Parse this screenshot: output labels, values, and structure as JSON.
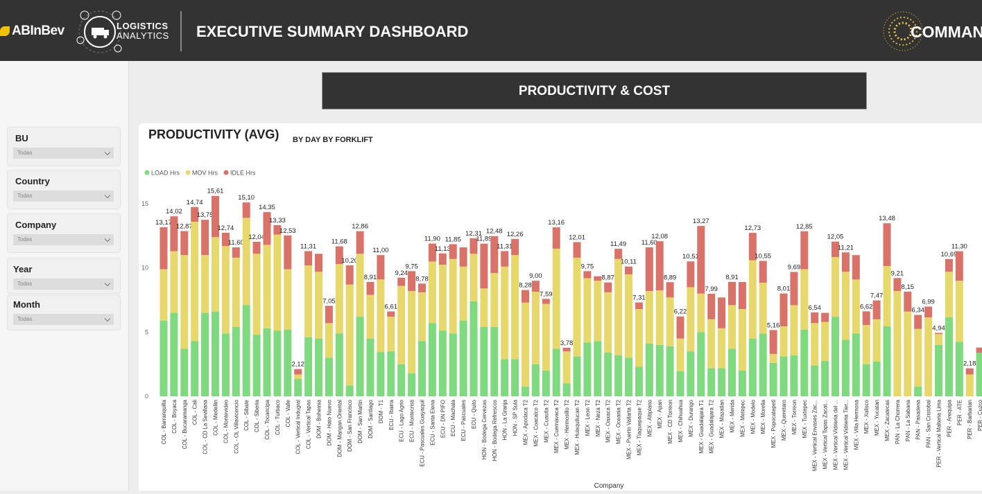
{
  "header": {
    "brand": "ABInBev",
    "logo_line1": "LOGISTICS",
    "logo_line2": "ANALYTICS",
    "title": "EXECUTIVE SUMMARY DASHBOARD",
    "right_title": "COMMAN"
  },
  "filters": [
    {
      "label": "BU",
      "value": "Todas"
    },
    {
      "label": "Country",
      "value": "Todas"
    },
    {
      "label": "Company",
      "value": "Todas"
    },
    {
      "label": "Year",
      "value": "Todas"
    },
    {
      "label": "Month",
      "value": "Todas"
    }
  ],
  "section_title": "PRODUCTIVITY & COST",
  "chart_data": {
    "type": "bar",
    "stacked": true,
    "title": "PRODUCTIVITY (AVG)",
    "subtitle": "BY DAY BY FORKLIFT",
    "x_label": "Company",
    "categories": [
      "COL - Barranquilla",
      "COL - Boyaca",
      "COL - Bucaramanga",
      "COL - Cali",
      "COL - CD La Sevillana",
      "COL - Medellin",
      "COL - Montevideo",
      "COL - OL Villavicencio",
      "COL - Sibate",
      "COL - Siberia",
      "COL - Tocancipa",
      "COL - Turbaco",
      "COL - Valle",
      "COL - Vertical Indugral",
      "COL - Vertical Tapas",
      "DOM - Bohemia",
      "DOM - Hato Nuevo",
      "DOM - Mangan Oriental",
      "DOM - San Francisco",
      "DOM - San Martin",
      "DOM - Santiago",
      "DOM - T1",
      "ECU - Ibarra",
      "ECU - Lago Agrio",
      "ECU - Montecristi",
      "ECU - Pascuales Guayaquil",
      "ECU - Santa Elena",
      "ECU - DN PIFO",
      "ECU - Machala",
      "ECU - Pascuales",
      "ECU - Quito",
      "HON - Bodega Cervezas",
      "HON - Bodega Refrescos",
      "HON - La Granja",
      "HON - SP Sula",
      "MEX - Apodaca T2",
      "MEX - Coacalco T2",
      "MEX - Cuautla T2",
      "MEX - Cuernavaca T2",
      "MEX - Hermosillo T2",
      "MEX - Huixquilucan T2",
      "MEX - Leon T2",
      "MEX - Neza T2",
      "MEX - Oaxaca T2",
      "MEX - Oceania T2",
      "MEX - Puerto Vallarta T2",
      "MEX - Tlaquepaque T2",
      "MEX - Altiplano",
      "MEX - Apan",
      "MEX - CD Torreon",
      "MEX - Chihuahua",
      "MEX - Durango",
      "MEX - Guadalajara T1",
      "MEX - Guadalajara T2",
      "MEX - Mazatlan",
      "MEX - Merida",
      "MEX - Metepec",
      "MEX - Modelo",
      "MEX - Morelia",
      "MEX - Popocatepetl",
      "MEX - Queretaro",
      "MEX - Torreon",
      "MEX - Tuxtepec",
      "MEX - Vertical Envases Zac...",
      "MEX - Vertical Tapas Zacat...",
      "MEX - Vertical Vidrieria del ...",
      "MEX - Vertical Vidrieria Tier...",
      "MEX - Villa Hermosa",
      "MEX - Xalisco",
      "MEX - Yucatan",
      "MEX - Zacatecas",
      "PAN - La Chorrera",
      "PAN - La Sabana",
      "PAN - Pasadena",
      "PAN - San Cristobal",
      "PER - Vertical Malteria Lima",
      "PER - Arequipa",
      "PER - ATE",
      "PER - Barbarian",
      "PER - Cuzco"
    ],
    "series": [
      {
        "name": "LOAD Hrs",
        "color": "#7fd97f",
        "values": [
          5.9,
          6.5,
          3.7,
          4.3,
          6.5,
          6.6,
          4.9,
          5.4,
          7.1,
          4.8,
          5.3,
          5.1,
          5.2,
          1.35,
          4.6,
          4.5,
          3.0,
          4.9,
          0.85,
          6.2,
          4.5,
          3.45,
          3.5,
          2.5,
          1.8,
          4.3,
          5.7,
          5.1,
          4.9,
          5.9,
          7.4,
          5.4,
          5.4,
          2.9,
          2.9,
          0.75,
          2.5,
          2.0,
          3.7,
          1.0,
          3.1,
          4.2,
          4.3,
          3.4,
          3.2,
          3.0,
          2.3,
          4.1,
          4.0,
          3.9,
          1.95,
          3.5,
          5.0,
          2.2,
          2.2,
          3.7,
          2.0,
          4.5,
          4.9,
          2.6,
          3.1,
          3.2,
          5.2,
          2.4,
          2.75,
          6.2,
          4.4,
          4.9,
          2.5,
          2.7,
          5.45,
          0,
          0,
          0.75,
          0,
          4.0,
          6.15,
          4.25,
          0,
          3.4
        ]
      },
      {
        "name": "MOV Hrs",
        "color": "#e6d86b",
        "values": [
          4.0,
          4.8,
          7.3,
          9.3,
          4.5,
          5.8,
          6.8,
          5.4,
          6.8,
          6.3,
          6.5,
          7.5,
          4.7,
          0.35,
          5.6,
          5.2,
          2.7,
          5.4,
          7.85,
          4.9,
          3.4,
          5.65,
          2.7,
          6.1,
          6.4,
          3.8,
          4.8,
          5.15,
          5.8,
          4.2,
          3.7,
          3.0,
          4.2,
          7.2,
          8.1,
          6.55,
          5.65,
          5.2,
          7.8,
          2.5,
          7.7,
          5.0,
          4.7,
          4.7,
          7.5,
          6.5,
          4.5,
          4.1,
          4.25,
          3.8,
          2.55,
          5.0,
          3.0,
          3.8,
          3.1,
          3.4,
          4.8,
          6.1,
          3.95,
          0.7,
          2.35,
          3.9,
          4.7,
          3.3,
          3.05,
          4.65,
          5.3,
          4.2,
          3.05,
          3.3,
          4.7,
          8.2,
          6.6,
          4.5,
          6.15,
          0.85,
          3.55,
          4.75,
          1.7,
          0
        ]
      },
      {
        "name": "IDLE Hrs",
        "color": "#d9736a",
        "values": [
          3.27,
          2.72,
          1.87,
          1.14,
          2.75,
          3.21,
          1.04,
          0.8,
          1.2,
          0.94,
          2.55,
          0.73,
          2.63,
          0.42,
          1.11,
          1.4,
          1.35,
          1.38,
          1.5,
          1.76,
          1.01,
          1.9,
          0.41,
          0.64,
          1.55,
          0.68,
          1.4,
          0.88,
          1.15,
          1.5,
          1.21,
          3.49,
          2.88,
          1.21,
          1.26,
          0.98,
          0.85,
          0.39,
          1.66,
          0.28,
          1.21,
          0.55,
          0.35,
          0.77,
          0.79,
          0.61,
          0.51,
          3.4,
          3.83,
          1.19,
          1.72,
          2.01,
          5.27,
          1.99,
          2.4,
          1.81,
          2.1,
          2.13,
          1.7,
          1.86,
          2.56,
          2.59,
          2.95,
          0.84,
          0.7,
          1.2,
          1.51,
          1.9,
          1.07,
          1.47,
          3.33,
          1.01,
          1.55,
          1.09,
          0.84,
          0.09,
          0.99,
          2.3,
          0.48,
          0.4
        ]
      }
    ],
    "total_labels": [
      "13,17",
      "14,02",
      "12,87",
      "14,74",
      "13,75",
      "15,61",
      "12,74",
      "11,60",
      "15,10",
      "12,04",
      "14,35",
      "13,33",
      "12,53",
      "2,12",
      "11,31",
      null,
      "7,05",
      "11,68",
      "10,20",
      "12,86",
      "8,91",
      "11,00",
      "6,61",
      "9,24",
      "9,75",
      "8,78",
      "11,90",
      "11,13",
      "11,85",
      null,
      "12,31",
      "11,89",
      "12,48",
      "11,31",
      "12,26",
      "8,28",
      "9,00",
      "7,59",
      "13,16",
      "3,78",
      "12,01",
      "9,75",
      null,
      "8,87",
      "11,49",
      "10,11",
      "7,31",
      "11,60",
      "12,08",
      "8,89",
      "6,22",
      "10,51",
      "13,27",
      "7,99",
      null,
      "8,91",
      null,
      "12,73",
      "10,55",
      "5,16",
      "8,01",
      "9,69",
      "12,85",
      "6,54",
      null,
      "12,05",
      "11,21",
      null,
      "6,62",
      "7,47",
      "13,48",
      "9,21",
      "8,15",
      "6,34",
      "6,99",
      "4,94",
      "10,69",
      "11,30",
      "2,18",
      null
    ],
    "ylim": [
      0,
      16
    ],
    "yticks": [
      0,
      5,
      10,
      15
    ],
    "grid": false,
    "legend": "top-left"
  }
}
